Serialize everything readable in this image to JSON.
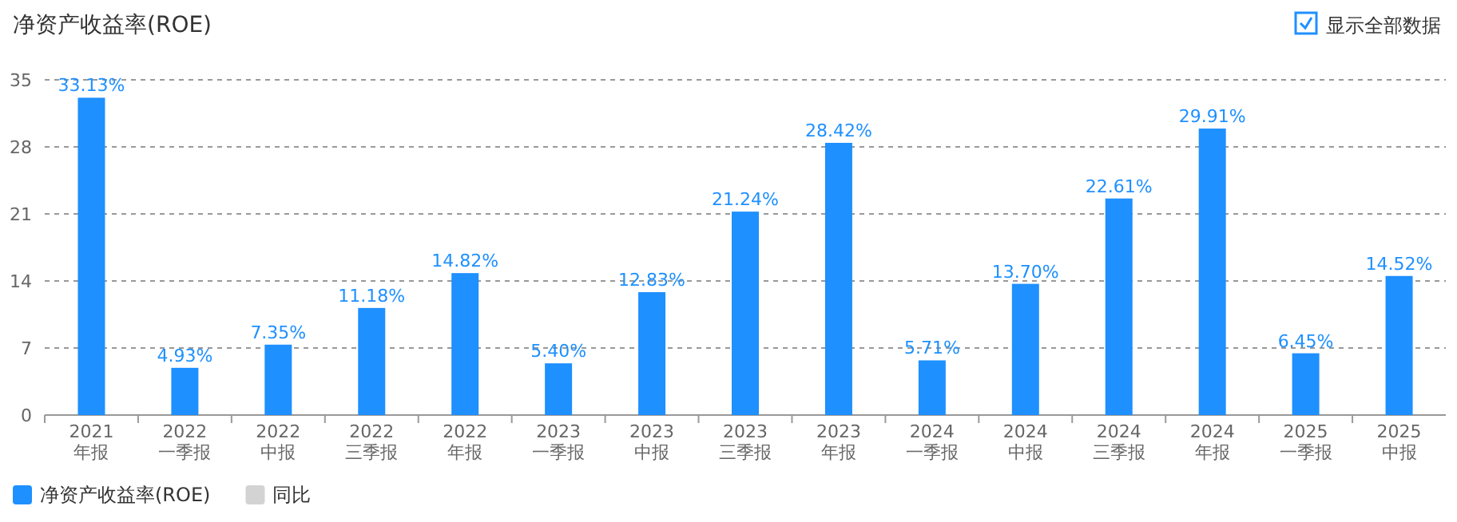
{
  "chart_data": {
    "type": "bar",
    "title": "净资产收益率(ROE)",
    "annotations": [
      "显示全部数据"
    ],
    "categories": [
      "2021\n年报",
      "2022\n一季报",
      "2022\n中报",
      "2022\n三季报",
      "2022\n年报",
      "2023\n一季报",
      "2023\n中报",
      "2023\n三季报",
      "2023\n年报",
      "2024\n一季报",
      "2024\n中报",
      "2024\n三季报",
      "2024\n年报",
      "2025\n一季报",
      "2025\n中报"
    ],
    "series": [
      {
        "name": "净资产收益率(ROE)",
        "color": "#1e90ff",
        "values": [
          33.13,
          4.93,
          7.35,
          11.18,
          14.82,
          5.4,
          12.83,
          21.24,
          28.42,
          5.71,
          13.7,
          22.61,
          29.91,
          6.45,
          14.52
        ],
        "value_labels": [
          "33.13%",
          "4.93%",
          "7.35%",
          "11.18%",
          "14.82%",
          "5.40%",
          "12.83%",
          "21.24%",
          "28.42%",
          "5.71%",
          "13.70%",
          "22.61%",
          "29.91%",
          "6.45%",
          "14.52%"
        ]
      },
      {
        "name": "同比",
        "color": "#d3d3d3",
        "values": [
          null,
          null,
          null,
          null,
          null,
          null,
          null,
          null,
          null,
          null,
          null,
          null,
          null,
          null,
          null
        ]
      }
    ],
    "ylim": [
      0,
      35
    ],
    "yticks": [
      0,
      7,
      14,
      21,
      28,
      35
    ],
    "grid": "y",
    "line_style": "dashed",
    "legend": "bottom left"
  }
}
